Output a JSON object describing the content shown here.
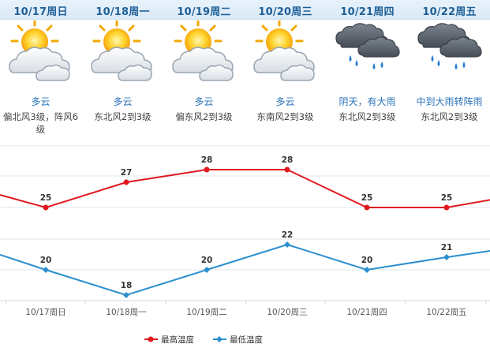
{
  "days": [
    {
      "date": "10/17周日",
      "weather": "多云",
      "wind": "偏北风3级，阵风6级",
      "icon": "partly-cloudy-icon"
    },
    {
      "date": "10/18周一",
      "weather": "多云",
      "wind": "东北风2到3级",
      "icon": "partly-cloudy-icon"
    },
    {
      "date": "10/19周二",
      "weather": "多云",
      "wind": "偏东风2到3级",
      "icon": "partly-cloudy-icon"
    },
    {
      "date": "10/20周三",
      "weather": "多云",
      "wind": "东南风2到3级",
      "icon": "partly-cloudy-icon"
    },
    {
      "date": "10/21周四",
      "weather": "阴天，有大雨",
      "wind": "东北风2到3级",
      "icon": "heavy-rain-icon"
    },
    {
      "date": "10/22周五",
      "weather": "中到大雨转阵雨",
      "wind": "东北风2到3级",
      "icon": "heavy-rain-icon"
    }
  ],
  "colors": {
    "high": "#e0191f",
    "low": "#2a8fcf",
    "header_text": "#1f5f96",
    "weather_text": "#2a73b8"
  },
  "chart_data": {
    "type": "line",
    "categories": [
      "10/17周日",
      "10/18周一",
      "10/19周二",
      "10/20周三",
      "10/21周四",
      "10/22周五"
    ],
    "series": [
      {
        "name": "最高温度",
        "values": [
          25,
          27,
          28,
          28,
          25,
          25
        ]
      },
      {
        "name": "最低温度",
        "values": [
          20,
          18,
          20,
          22,
          20,
          21
        ]
      }
    ],
    "legend_position": "bottom-center",
    "grid": "horizontal"
  }
}
